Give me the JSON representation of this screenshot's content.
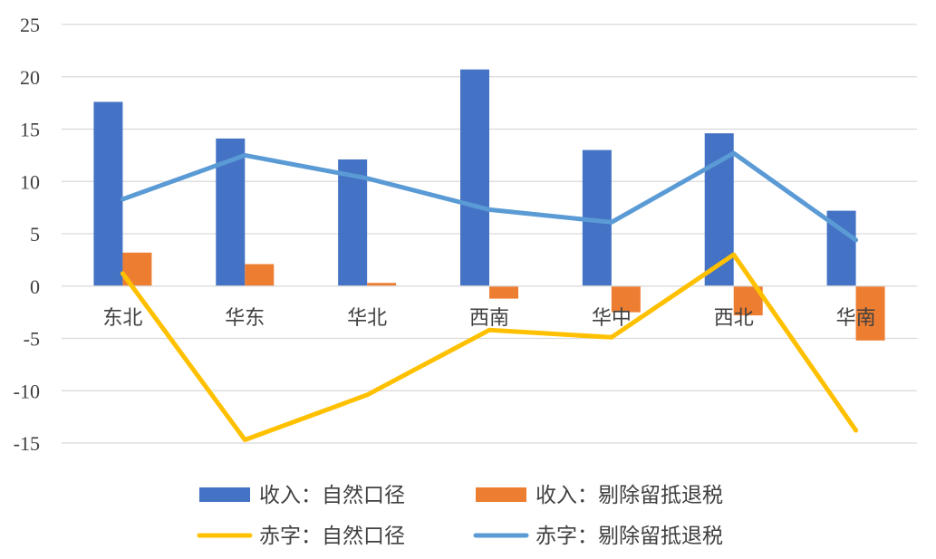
{
  "chart_data": {
    "type": "bar",
    "categories": [
      "东北",
      "华东",
      "华北",
      "西南",
      "华中",
      "西北",
      "华南"
    ],
    "ylim": [
      -15,
      25
    ],
    "yticks": [
      25,
      20,
      15,
      10,
      5,
      0,
      -5,
      -10,
      -15
    ],
    "grid": true,
    "legend_position": "bottom",
    "series": [
      {
        "name": "收入：自然口径",
        "type": "bar",
        "color": "#4472C4",
        "values": [
          17.6,
          14.1,
          12.1,
          20.7,
          13.0,
          14.6,
          7.2
        ]
      },
      {
        "name": "收入：剔除留抵退税",
        "type": "bar",
        "color": "#ED7D31",
        "values": [
          3.2,
          2.1,
          0.3,
          -1.2,
          -2.5,
          -2.8,
          -5.2
        ]
      },
      {
        "name": "赤字：自然口径",
        "type": "line",
        "color": "#FFC000",
        "values": [
          1.2,
          -14.7,
          -10.4,
          -4.2,
          -4.9,
          3.0,
          -13.8
        ]
      },
      {
        "name": "赤字：剔除留抵退税",
        "type": "line",
        "color": "#5B9BD5",
        "values": [
          8.3,
          12.5,
          10.3,
          7.3,
          6.1,
          12.7,
          4.4
        ]
      }
    ]
  }
}
